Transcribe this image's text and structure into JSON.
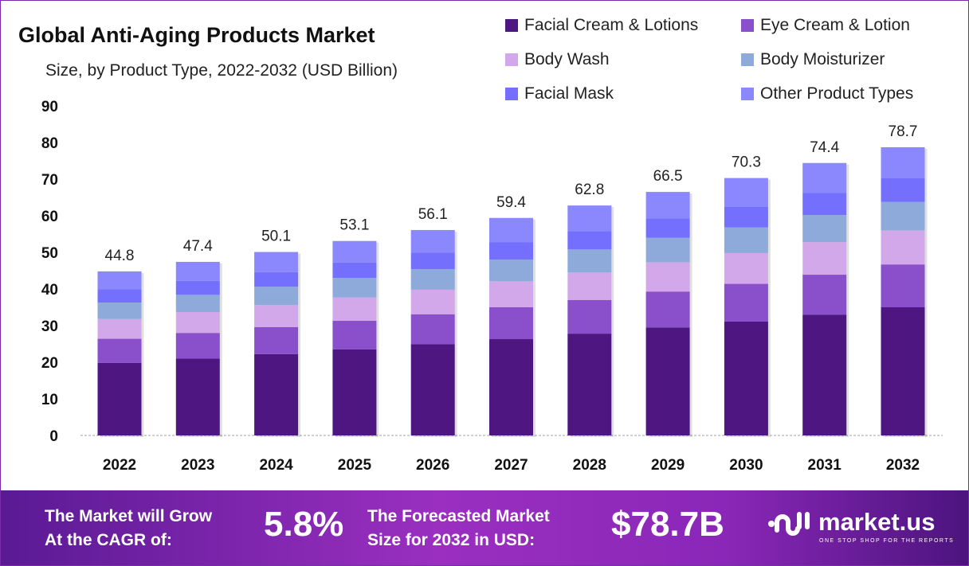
{
  "chart_data": {
    "type": "bar",
    "stacked": true,
    "title": "Global Anti-Aging Products Market",
    "subtitle": "Size, by Product Type, 2022-2032 (USD Billion)",
    "categories": [
      "2022",
      "2023",
      "2024",
      "2025",
      "2026",
      "2027",
      "2028",
      "2029",
      "2030",
      "2031",
      "2032"
    ],
    "totals": [
      44.8,
      47.4,
      50.1,
      53.1,
      56.1,
      59.4,
      62.8,
      66.5,
      70.3,
      74.4,
      78.7
    ],
    "total_labels": [
      "44.8",
      "47.4",
      "50.1",
      "53.1",
      "56.1",
      "59.4",
      "62.8",
      "66.5",
      "70.3",
      "74.4",
      "78.7"
    ],
    "series": [
      {
        "name": "Facial Cream & Lotions",
        "color": "#4e1680",
        "values": [
          19.8,
          21.0,
          22.2,
          23.5,
          24.9,
          26.3,
          27.8,
          29.5,
          31.1,
          33.0,
          35.0
        ]
      },
      {
        "name": "Eye Cream & Lotion",
        "color": "#8a4fcb",
        "values": [
          6.6,
          7.0,
          7.4,
          7.8,
          8.2,
          8.7,
          9.2,
          9.8,
          10.3,
          10.9,
          11.7
        ]
      },
      {
        "name": "Body Wash",
        "color": "#d3a8ea",
        "values": [
          5.4,
          5.7,
          6.0,
          6.4,
          6.7,
          7.1,
          7.5,
          8.0,
          8.4,
          8.9,
          9.3
        ]
      },
      {
        "name": "Body Moisturizer",
        "color": "#8eaadb",
        "values": [
          4.5,
          4.7,
          5.0,
          5.3,
          5.6,
          5.9,
          6.3,
          6.7,
          7.0,
          7.4,
          7.8
        ]
      },
      {
        "name": "Facial Mask",
        "color": "#7470fd",
        "values": [
          3.6,
          3.8,
          4.0,
          4.2,
          4.5,
          4.8,
          5.0,
          5.3,
          5.6,
          6.0,
          6.5
        ]
      },
      {
        "name": "Other Product Types",
        "color": "#8b87fd",
        "values": [
          4.9,
          5.2,
          5.5,
          5.9,
          6.2,
          6.6,
          7.0,
          7.2,
          7.9,
          8.2,
          8.4
        ]
      }
    ],
    "yticks": [
      "0",
      "10",
      "20",
      "30",
      "40",
      "50",
      "60",
      "70",
      "80",
      "90"
    ],
    "ylim": [
      0,
      90
    ],
    "xlabel": "",
    "ylabel": "",
    "grid": false,
    "legend_position": "top-right"
  },
  "footer": {
    "cagr_label_1": "The Market will Grow",
    "cagr_label_2": "At the CAGR of:",
    "cagr_value": "5.8%",
    "forecast_label_1": "The Forecasted Market",
    "forecast_label_2": "Size for 2032 in USD:",
    "forecast_value": "$78.7B",
    "brand": "market.us",
    "tagline": "ONE STOP SHOP FOR THE REPORTS"
  }
}
